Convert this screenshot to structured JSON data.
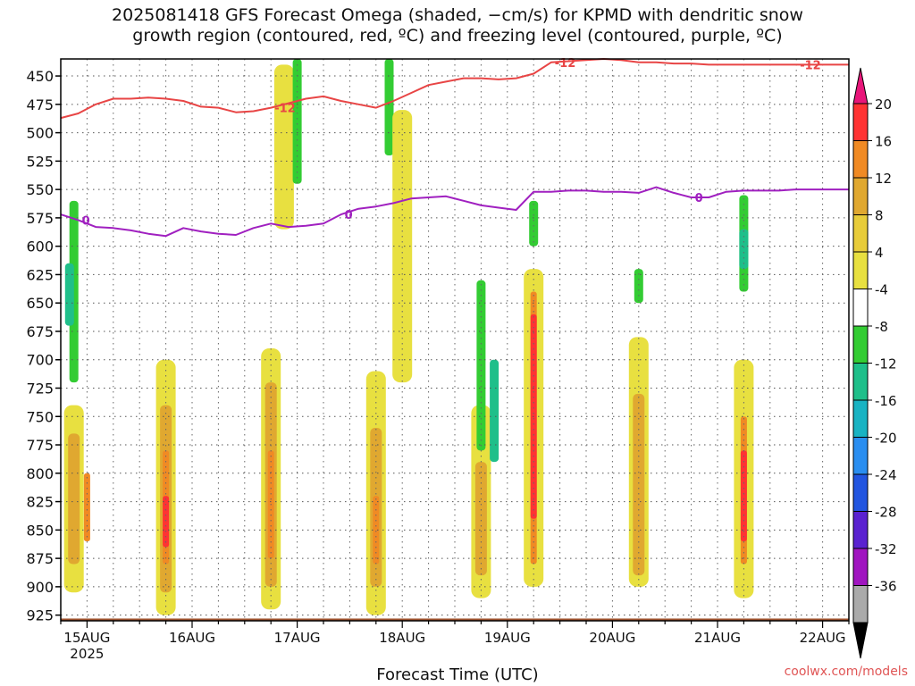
{
  "title": {
    "line1": "2025081418 GFS Forecast Omega (shaded, −cm/s) for KPMD with dendritic snow",
    "line2": "growth region (contoured, red, ºC) and freezing level (contoured, purple, ºC)"
  },
  "credit": "coolwx.com/models",
  "chart_data": {
    "type": "heatmap",
    "title": "2025081418 GFS Forecast Omega (shaded, −cm/s) for KPMD with dendritic snow growth region (contoured, red, ºC) and freezing level (contoured, purple, ºC)",
    "xlabel": "Forecast Time (UTC)",
    "ylabel": "",
    "x_ticks": [
      "15AUG",
      "16AUG",
      "17AUG",
      "18AUG",
      "19AUG",
      "20AUG",
      "21AUG",
      "22AUG"
    ],
    "x_year": "2025",
    "xlim_hours": [
      0,
      180
    ],
    "y_ticks": [
      450,
      475,
      500,
      525,
      550,
      575,
      600,
      625,
      650,
      675,
      700,
      725,
      750,
      775,
      800,
      825,
      850,
      875,
      900,
      925
    ],
    "ylim_hPa": [
      930,
      435
    ],
    "grid": true,
    "colorbar": {
      "labels": [
        20,
        16,
        12,
        8,
        4,
        -4,
        -8,
        -12,
        -16,
        -20,
        -24,
        -28,
        -32,
        -36
      ],
      "colors": [
        "#ff3333",
        "#f08a24",
        "#e0a830",
        "#e8cc3a",
        "#e8e040",
        "#ffffff",
        "#33cc33",
        "#1fbf8a",
        "#19b3c3",
        "#2a8ef0",
        "#2255e0",
        "#5a22d0",
        "#a015c0",
        "#aaaaaa"
      ],
      "top_color": "#e8167a",
      "bottom_color": "#000000"
    },
    "omega_cells": [
      {
        "t": 3,
        "p0": 740,
        "p1": 905,
        "value": 6
      },
      {
        "t": 3,
        "p0": 765,
        "p1": 880,
        "value": 10
      },
      {
        "t": 6,
        "p0": 800,
        "p1": 860,
        "value": 14
      },
      {
        "t": 3,
        "p0": 560,
        "p1": 720,
        "value": -8
      },
      {
        "t": 2,
        "p0": 615,
        "p1": 670,
        "value": -12
      },
      {
        "t": 24,
        "p0": 700,
        "p1": 925,
        "value": 6
      },
      {
        "t": 24,
        "p0": 740,
        "p1": 905,
        "value": 10
      },
      {
        "t": 24,
        "p0": 780,
        "p1": 880,
        "value": 14
      },
      {
        "t": 24,
        "p0": 820,
        "p1": 865,
        "value": 18
      },
      {
        "t": 48,
        "p0": 690,
        "p1": 920,
        "value": 6
      },
      {
        "t": 48,
        "p0": 720,
        "p1": 900,
        "value": 10
      },
      {
        "t": 48,
        "p0": 780,
        "p1": 875,
        "value": 14
      },
      {
        "t": 51,
        "p0": 440,
        "p1": 585,
        "value": 6
      },
      {
        "t": 54,
        "p0": 435,
        "p1": 545,
        "value": -8
      },
      {
        "t": 72,
        "p0": 710,
        "p1": 925,
        "value": 6
      },
      {
        "t": 72,
        "p0": 760,
        "p1": 900,
        "value": 10
      },
      {
        "t": 72,
        "p0": 820,
        "p1": 880,
        "value": 14
      },
      {
        "t": 75,
        "p0": 435,
        "p1": 520,
        "value": -8
      },
      {
        "t": 78,
        "p0": 480,
        "p1": 720,
        "value": 6
      },
      {
        "t": 96,
        "p0": 740,
        "p1": 910,
        "value": 6
      },
      {
        "t": 96,
        "p0": 790,
        "p1": 890,
        "value": 10
      },
      {
        "t": 96,
        "p0": 630,
        "p1": 780,
        "value": -8
      },
      {
        "t": 99,
        "p0": 700,
        "p1": 790,
        "value": -12
      },
      {
        "t": 108,
        "p0": 620,
        "p1": 900,
        "value": 6
      },
      {
        "t": 108,
        "p0": 640,
        "p1": 880,
        "value": 14
      },
      {
        "t": 108,
        "p0": 660,
        "p1": 840,
        "value": 18
      },
      {
        "t": 108,
        "p0": 560,
        "p1": 600,
        "value": -8
      },
      {
        "t": 132,
        "p0": 680,
        "p1": 900,
        "value": 6
      },
      {
        "t": 132,
        "p0": 730,
        "p1": 890,
        "value": 10
      },
      {
        "t": 132,
        "p0": 620,
        "p1": 650,
        "value": -8
      },
      {
        "t": 156,
        "p0": 700,
        "p1": 910,
        "value": 6
      },
      {
        "t": 156,
        "p0": 750,
        "p1": 880,
        "value": 14
      },
      {
        "t": 156,
        "p0": 780,
        "p1": 860,
        "value": 18
      },
      {
        "t": 156,
        "p0": 555,
        "p1": 640,
        "value": -8
      },
      {
        "t": 156,
        "p0": 585,
        "p1": 620,
        "value": -12
      }
    ],
    "series": [
      {
        "name": "-12",
        "color": "#e84545",
        "label_text": "-12",
        "x": [
          0,
          4,
          8,
          12,
          16,
          20,
          24,
          28,
          32,
          36,
          40,
          44,
          48,
          52,
          56,
          60,
          64,
          68,
          72,
          76,
          80,
          84,
          88,
          92,
          96,
          100,
          104,
          108,
          112,
          116,
          120,
          124,
          128,
          132,
          136,
          140,
          144,
          148,
          152,
          156,
          160,
          164,
          168,
          172,
          176,
          180
        ],
        "y": [
          487,
          483,
          475,
          470,
          470,
          469,
          470,
          472,
          477,
          478,
          482,
          481,
          478,
          474,
          470,
          468,
          472,
          475,
          478,
          472,
          465,
          458,
          455,
          452,
          452,
          453,
          452,
          448,
          438,
          437,
          436,
          435,
          436,
          438,
          438,
          439,
          439,
          440,
          440,
          440,
          440,
          440,
          440,
          440,
          440,
          440
        ]
      },
      {
        "name": "0",
        "color": "#a020c0",
        "label_text": "0",
        "x": [
          0,
          4,
          8,
          12,
          16,
          20,
          24,
          28,
          32,
          36,
          40,
          44,
          48,
          52,
          56,
          60,
          64,
          68,
          72,
          76,
          80,
          84,
          88,
          92,
          96,
          100,
          104,
          108,
          112,
          116,
          120,
          124,
          128,
          132,
          136,
          140,
          144,
          148,
          152,
          156,
          160,
          164,
          168,
          172,
          176,
          180
        ],
        "y": [
          572,
          577,
          583,
          584,
          586,
          589,
          591,
          584,
          587,
          589,
          590,
          584,
          580,
          583,
          582,
          580,
          572,
          567,
          565,
          562,
          558,
          557,
          556,
          560,
          564,
          566,
          568,
          552,
          552,
          551,
          551,
          552,
          552,
          553,
          548,
          553,
          557,
          557,
          552,
          551,
          551,
          551,
          550,
          550,
          550,
          550
        ]
      }
    ]
  }
}
